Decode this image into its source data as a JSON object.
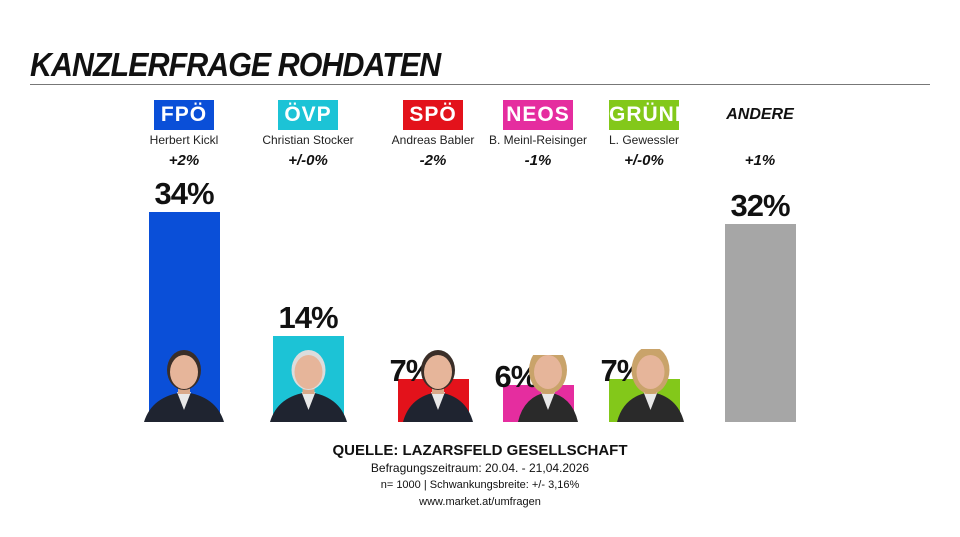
{
  "title": "KANZLERFRAGE ROHDATEN",
  "chart_data": {
    "type": "bar",
    "categories": [
      "FPÖ",
      "ÖVP",
      "SPÖ",
      "NEOS",
      "GRÜNE",
      "ANDERE"
    ],
    "candidates": [
      "Herbert Kickl",
      "Christian Stocker",
      "Andreas Babler",
      "B. Meinl-Reisinger",
      "L. Gewessler",
      ""
    ],
    "changes": [
      "+2%",
      "+/-0%",
      "-2%",
      "-1%",
      "+/-0%",
      "+1%"
    ],
    "values": [
      34,
      14,
      7,
      6,
      7,
      32
    ],
    "value_labels": [
      "34%",
      "14%",
      "7%",
      "6%",
      "7%",
      "32%"
    ],
    "colors": [
      "#0a4fd8",
      "#1cc3d6",
      "#e3121b",
      "#e52d9f",
      "#83c81a",
      "#a6a6a6"
    ]
  },
  "footer": {
    "source": "QUELLE: LAZARSFELD GESELLSCHAFT",
    "period": "Befragungszeitraum: 20.04. - 21,04.2026",
    "sample": "n= 1000 | Schwankungsbreite: +/- 3,16%",
    "url": "www.market.at/umfragen"
  }
}
